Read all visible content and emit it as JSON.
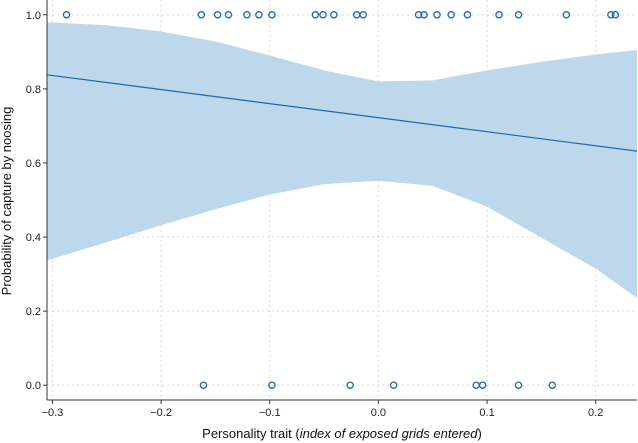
{
  "chart_data": {
    "type": "scatter",
    "title": "",
    "xlabel": {
      "prefix": "Personality trait (",
      "italic": "index of exposed grids entered",
      "suffix": ")"
    },
    "ylabel": "Probability of capture by noosing",
    "xlim": [
      -0.305,
      0.238
    ],
    "ylim": [
      -0.04,
      1.04
    ],
    "x_ticks": [
      -0.3,
      -0.2,
      -0.1,
      0.0,
      0.1,
      0.2
    ],
    "x_tick_labels": [
      "−0.3",
      "−0.2",
      "−0.1",
      "0.0",
      "0.1",
      "0.2"
    ],
    "y_ticks": [
      0.0,
      0.2,
      0.4,
      0.6,
      0.8,
      1.0
    ],
    "y_tick_labels": [
      "0.0",
      "0.2",
      "0.4",
      "0.6",
      "0.8",
      "1.0"
    ],
    "grid": true,
    "colors": {
      "points": "#2166ac",
      "fit_line": "#2166ac",
      "confidence_band": "#bcd8ea"
    },
    "fit_line": {
      "x": [
        -0.305,
        0.238
      ],
      "y": [
        0.838,
        0.632
      ]
    },
    "confidence_band": {
      "x": [
        -0.305,
        -0.25,
        -0.2,
        -0.15,
        -0.1,
        -0.05,
        0.0,
        0.05,
        0.1,
        0.15,
        0.2,
        0.238
      ],
      "lower": [
        0.337,
        0.386,
        0.432,
        0.475,
        0.515,
        0.543,
        0.552,
        0.538,
        0.482,
        0.398,
        0.315,
        0.235
      ],
      "upper": [
        0.98,
        0.972,
        0.955,
        0.928,
        0.89,
        0.85,
        0.82,
        0.823,
        0.85,
        0.873,
        0.893,
        0.905
      ]
    },
    "series": [
      {
        "values": [
          {
            "x": -0.287,
            "y": 1.0
          },
          {
            "x": -0.163,
            "y": 1.0
          },
          {
            "x": -0.148,
            "y": 1.0
          },
          {
            "x": -0.138,
            "y": 1.0
          },
          {
            "x": -0.121,
            "y": 1.0
          },
          {
            "x": -0.11,
            "y": 1.0
          },
          {
            "x": -0.098,
            "y": 1.0
          },
          {
            "x": -0.058,
            "y": 1.0
          },
          {
            "x": -0.051,
            "y": 1.0
          },
          {
            "x": -0.041,
            "y": 1.0
          },
          {
            "x": -0.02,
            "y": 1.0
          },
          {
            "x": -0.014,
            "y": 1.0
          },
          {
            "x": 0.037,
            "y": 1.0
          },
          {
            "x": 0.042,
            "y": 1.0
          },
          {
            "x": 0.054,
            "y": 1.0
          },
          {
            "x": 0.067,
            "y": 1.0
          },
          {
            "x": 0.082,
            "y": 1.0
          },
          {
            "x": 0.111,
            "y": 1.0
          },
          {
            "x": 0.129,
            "y": 1.0
          },
          {
            "x": 0.173,
            "y": 1.0
          },
          {
            "x": 0.214,
            "y": 1.0
          },
          {
            "x": 0.218,
            "y": 1.0
          },
          {
            "x": -0.161,
            "y": 0.0
          },
          {
            "x": -0.098,
            "y": 0.0
          },
          {
            "x": -0.026,
            "y": 0.0
          },
          {
            "x": 0.014,
            "y": 0.0
          },
          {
            "x": 0.09,
            "y": 0.0
          },
          {
            "x": 0.096,
            "y": 0.0
          },
          {
            "x": 0.129,
            "y": 0.0
          },
          {
            "x": 0.16,
            "y": 0.0
          }
        ]
      }
    ]
  }
}
